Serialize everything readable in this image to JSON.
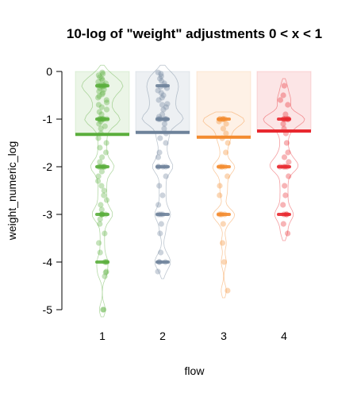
{
  "chart_data": {
    "type": "pirateplot",
    "title": "10-log of \"weight\" adjustments 0 < x < 1",
    "xlabel": "flow",
    "ylabel": "weight_numeric_log",
    "categories": [
      "1",
      "2",
      "3",
      "4"
    ],
    "ylim": [
      -5,
      0
    ],
    "yticks": [
      0,
      -1,
      -2,
      -3,
      -4,
      -5
    ],
    "ytick_labels": [
      "0",
      "-1",
      "-2",
      "-3",
      "-4",
      "-5"
    ],
    "grid": false,
    "colors": [
      "#5AAE3C",
      "#6E829A",
      "#F38B2F",
      "#E8282F"
    ],
    "series": [
      {
        "category": "1",
        "mean": -1.32,
        "bar_top": 0,
        "points": [
          -0.02,
          -0.05,
          -0.08,
          -0.12,
          -0.15,
          -0.18,
          -0.22,
          -0.25,
          -0.28,
          -0.3,
          -0.3,
          -0.3,
          -0.3,
          -0.3,
          -0.32,
          -0.35,
          -0.38,
          -0.42,
          -0.45,
          -0.48,
          -0.52,
          -0.55,
          -0.6,
          -0.65,
          -0.7,
          -0.75,
          -0.8,
          -0.85,
          -0.9,
          -1,
          -1,
          -1,
          -1,
          -1,
          -1,
          -1,
          -1,
          -1.05,
          -1.1,
          -1.15,
          -1.2,
          -1.3,
          -1.4,
          -1.5,
          -1.6,
          -1.7,
          -1.8,
          -1.9,
          -2,
          -2,
          -2,
          -2,
          -2,
          -2,
          -2.1,
          -2.2,
          -2.3,
          -2.4,
          -2.5,
          -2.6,
          -2.7,
          -2.8,
          -2.9,
          -3,
          -3,
          -3,
          -3,
          -3,
          -3.1,
          -3.2,
          -3.4,
          -3.6,
          -3.8,
          -4,
          -4,
          -4,
          -4.2,
          -4.22,
          -4.3,
          -5,
          -5
        ],
        "density_ticks": [
          -0.3,
          -1.0,
          -2.0,
          -3.0,
          -4.0
        ]
      },
      {
        "category": "2",
        "mean": -1.28,
        "bar_top": 0,
        "points": [
          -0.02,
          -0.05,
          -0.1,
          -0.15,
          -0.2,
          -0.25,
          -0.3,
          -0.32,
          -0.35,
          -0.4,
          -0.45,
          -0.5,
          -0.55,
          -0.6,
          -0.68,
          -0.7,
          -0.75,
          -0.8,
          -0.9,
          -0.95,
          -1,
          -1,
          -1,
          -1,
          -1,
          -1,
          -1.1,
          -1.2,
          -1.3,
          -1.4,
          -1.5,
          -1.7,
          -1.8,
          -2,
          -2,
          -2,
          -2,
          -2.2,
          -2.4,
          -2.6,
          -2.8,
          -3,
          -3,
          -3,
          -3.2,
          -3.4,
          -3.8,
          -4,
          -4,
          -4,
          -4.2
        ],
        "density_ticks": [
          -0.3,
          -1.0,
          -2.0,
          -3.0,
          -4.0
        ]
      },
      {
        "category": "3",
        "mean": -1.38,
        "bar_top": 0,
        "points": [
          -1,
          -1,
          -1,
          -1,
          -1,
          -1,
          -1.05,
          -1.1,
          -1.2,
          -1.3,
          -1.4,
          -1.5,
          -1.7,
          -2,
          -2,
          -2,
          -2,
          -2.2,
          -2.4,
          -2.6,
          -3,
          -3,
          -3,
          -3,
          -3.2,
          -3.6,
          -4,
          -4.6
        ],
        "density_ticks": [
          -1.0,
          -2.0,
          -3.0
        ]
      },
      {
        "category": "4",
        "mean": -1.25,
        "bar_top": 0,
        "points": [
          -0.3,
          -0.5,
          -0.6,
          -0.7,
          -0.9,
          -1,
          -1,
          -1,
          -1,
          -1,
          -1,
          -1.1,
          -1.2,
          -1.3,
          -1.5,
          -1.7,
          -1.8,
          -1.9,
          -2,
          -2,
          -2,
          -2,
          -2.2,
          -2.4,
          -2.6,
          -2.8,
          -3,
          -3,
          -3,
          -3.2,
          -3.4
        ],
        "density_ticks": [
          -1.0,
          -2.0,
          -3.0
        ]
      }
    ]
  }
}
